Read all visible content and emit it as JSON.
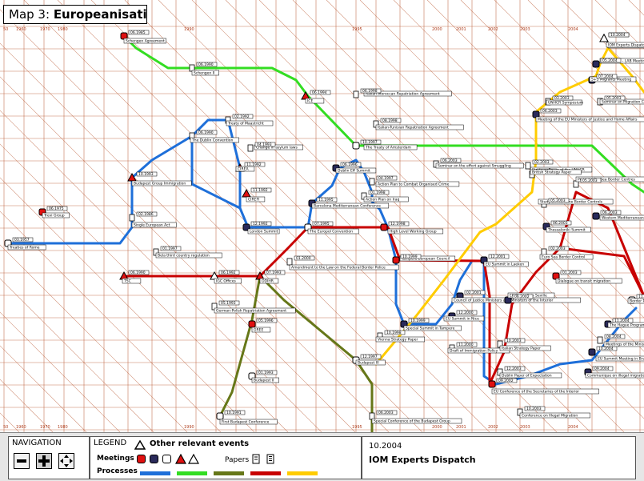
{
  "title": {
    "prefix": "Map 3:",
    "name": "Europeanisation"
  },
  "axis_years": [
    "50",
    "1960",
    "1970",
    "1980",
    "1990",
    "1995",
    "2000",
    "2001",
    "2002",
    "2003",
    "2004"
  ],
  "colors": {
    "grid": "#b8552e",
    "blue": "#1e6fd9",
    "green": "#33dd22",
    "olive": "#667718",
    "red": "#c80000",
    "yellow": "#ffcc00",
    "meeting_red": "#e01010",
    "meeting_navy": "#2a2a5a"
  },
  "navigation": {
    "title": "NAVIGATION",
    "icons": [
      "zoom-out-icon",
      "pan-cross-icon",
      "move-arrows-icon"
    ]
  },
  "legend": {
    "title": "LEGEND",
    "other_events": "Other relevant events",
    "meetings_label": "Meetings",
    "papers_label": "Papers",
    "processes_label": "Processes"
  },
  "info": {
    "date": "10.2004",
    "event": "IOM Experts Dispatch"
  },
  "events": [
    {
      "label": "Schengen Agreement",
      "date": "06.1985"
    },
    {
      "label": "Schengen II",
      "date": "06.1990"
    },
    {
      "label": "ICE",
      "date": "06.1994"
    },
    {
      "label": "Italian-Moroccan Repatriation Agreement",
      "date": "06.1998"
    },
    {
      "label": "Treaty of Maastricht",
      "date": "02.1992"
    },
    {
      "label": "The Dublin Convention",
      "date": "06.1990"
    },
    {
      "label": "Change in asylum laws",
      "date": "04.1993"
    },
    {
      "label": "Italian-Tunisian Repatriation Agreement",
      "date": "08.1998"
    },
    {
      "label": "The Treaty of Amsterdam",
      "date": "10.1997"
    },
    {
      "label": "IOM Experts Dispatch",
      "date": "10.2004"
    },
    {
      "label": "Budapest Group Immigration",
      "date": "10.1993"
    },
    {
      "label": "CIREA",
      "date": "11.1992"
    },
    {
      "label": "Seminar on the effort against Smuggling",
      "date": "06.2003"
    },
    {
      "label": "Dublin Eff Summit",
      "date": "06.1996"
    },
    {
      "label": "Action Plan to Combat Organised Crime",
      "date": "04.1997"
    },
    {
      "label": "Action Plan on Iraq",
      "date": "01.1998"
    },
    {
      "label": "Trevi Group",
      "date": "06.1975"
    },
    {
      "label": "CIREFI",
      "date": "11.1992"
    },
    {
      "label": "Barcelona Mediterranean Conference",
      "date": "11.1995"
    },
    {
      "label": "Strategy Paper of the UNHCR",
      "date": "01.2003"
    },
    {
      "label": "British Strategy Paper",
      "date": "02.2003"
    },
    {
      "label": "Single European Act",
      "date": "02.1986"
    },
    {
      "label": "London Summit",
      "date": "12.1992"
    },
    {
      "label": "The Europol Convention",
      "date": "07.1995"
    },
    {
      "label": "High Level Working Group",
      "date": "12.1998"
    },
    {
      "label": "Treaties of Rome",
      "date": "03.1957"
    },
    {
      "label": "Bela third country regulation",
      "date": "01.1997"
    },
    {
      "label": "Amendment to the Law on the Federal Border Police",
      "date": "01.2000"
    },
    {
      "label": "TSC",
      "date": "06.1990"
    },
    {
      "label": "IGC Offices",
      "date": "06.1992"
    },
    {
      "label": "ODIHR",
      "date": "07.1993"
    },
    {
      "label": "Tampere European Council",
      "date": "10.1999"
    },
    {
      "label": "EU Summit in Laeken",
      "date": "12.2001"
    },
    {
      "label": "Council of Justice Ministers and Ministers of the Interior",
      "date": "02.2001"
    },
    {
      "label": "German-Polish Repatriation Agreement",
      "date": "05.1993"
    },
    {
      "label": "GREE",
      "date": "05.1996"
    },
    {
      "label": "Special Summit in Tampere",
      "date": "10.1999"
    },
    {
      "label": "EU Summit in Nice",
      "date": "12.2000"
    },
    {
      "label": "Budapest III",
      "date": "12.1997"
    },
    {
      "label": "Draft of Immigration Policy",
      "date": "11.2000"
    },
    {
      "label": "Italian Strategy Paper",
      "date": "10.2003"
    },
    {
      "label": "Budapest II",
      "date": "01.1993"
    },
    {
      "label": "Vienna Strategy Paper",
      "date": "10.1998"
    },
    {
      "label": "Dublin Paper of Expectation",
      "date": "12.2003"
    },
    {
      "label": "EU Conference of the Secretaries of the Interior",
      "date": "09.2002"
    },
    {
      "label": "First Budapest Conference",
      "date": "10.1991"
    },
    {
      "label": "Conference on Illegal Migration",
      "date": "10.2003"
    },
    {
      "label": "Special Conference of the Budapest Group",
      "date": "06.2003"
    },
    {
      "label": "EU Summit in Seville",
      "date": "06.2002"
    },
    {
      "label": "Dialogue on transit migration",
      "date": "01.2003"
    },
    {
      "label": "Euro Sea Border Control",
      "date": "02.2003"
    },
    {
      "label": "Thessaloniki Summit",
      "date": "06.2003"
    },
    {
      "label": "Study on Maritime Border Controls",
      "date": "05.2003"
    },
    {
      "label": "Western Mediterranean Ba",
      "date": "06.2003"
    },
    {
      "label": "Meeting of the EU Ministers of Justice and Home Affairs",
      "date": "06.2003"
    },
    {
      "label": "UNHCR Symposium",
      "date": "03.2003"
    },
    {
      "label": "Seminar on Migration Controls in the",
      "date": "05.2003"
    },
    {
      "label": "5+5 Migrants Meeting",
      "date": "07.2004"
    },
    {
      "label": "LAB and EI - LAB Meetings",
      "date": "05.2004"
    },
    {
      "label": "IOM Experts Dispatch",
      "date": "10.2004"
    },
    {
      "label": "Proposal for Sea Border Centres",
      "date": "05.2003"
    },
    {
      "label": "The Hague Programme",
      "date": "11.2004"
    },
    {
      "label": "EU Summit Meeting in Brussels",
      "date": "10.2004"
    },
    {
      "label": "Meetings of the Ministers of",
      "date": "08.2004"
    },
    {
      "label": "Communique on illegal migrations",
      "date": "09.2004"
    },
    {
      "label": "Border Po",
      "date": "11.2004"
    }
  ]
}
